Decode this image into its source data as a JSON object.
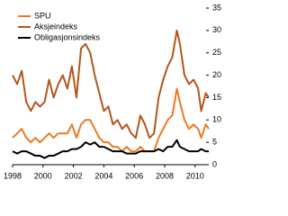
{
  "chart_data": {
    "type": "line",
    "x": [
      1998,
      1998.3,
      1998.6,
      1998.9,
      1999.2,
      1999.5,
      1999.8,
      2000.1,
      2000.4,
      2000.7,
      2001,
      2001.3,
      2001.6,
      2001.9,
      2002.2,
      2002.5,
      2002.8,
      2003.1,
      2003.4,
      2003.7,
      2004,
      2004.3,
      2004.6,
      2004.9,
      2005.2,
      2005.5,
      2005.8,
      2006.1,
      2006.4,
      2006.7,
      2007,
      2007.3,
      2007.6,
      2007.9,
      2008.2,
      2008.5,
      2008.8,
      2009,
      2009.3,
      2009.6,
      2009.9,
      2010.2,
      2010.4,
      2010.7,
      2010.9
    ],
    "series": [
      {
        "name": "SPU",
        "color": "#ec7a23",
        "values": [
          6,
          7,
          8,
          6,
          5,
          6,
          5,
          6,
          7,
          6,
          7,
          7,
          7,
          9,
          6,
          9,
          10,
          10,
          8,
          6,
          5,
          5,
          4,
          4,
          3,
          4,
          3,
          3,
          4,
          3,
          3,
          3,
          6,
          8,
          10,
          11,
          17,
          14,
          10,
          8,
          9,
          8,
          6,
          9,
          8
        ]
      },
      {
        "name": "Aksjeindeks",
        "color": "#b4561d",
        "values": [
          20,
          18,
          21,
          14,
          12,
          14,
          13,
          14,
          19,
          15,
          18,
          20,
          17,
          22,
          15,
          26,
          27,
          25,
          20,
          16,
          12,
          13,
          9,
          10,
          8,
          9,
          7,
          6,
          11,
          9,
          6,
          7,
          15,
          19,
          22,
          24,
          30,
          27,
          20,
          18,
          19,
          17,
          12,
          16,
          15
        ]
      },
      {
        "name": "Obligasjonsindeks",
        "color": "#000000",
        "values": [
          3,
          2.5,
          3,
          3,
          2.5,
          2,
          2,
          1.5,
          2,
          2,
          2.5,
          3,
          3,
          3.5,
          3.5,
          4,
          5,
          4.5,
          5,
          4,
          4,
          3.5,
          3,
          3,
          3,
          2.5,
          2.5,
          2.5,
          3,
          3,
          3,
          3,
          3.5,
          3,
          4,
          4,
          5.5,
          4,
          3.5,
          3,
          3,
          3,
          3.5,
          3,
          3
        ]
      }
    ],
    "xlim": [
      1998,
      2010.9
    ],
    "xticks": [
      1998,
      2000,
      2002,
      2004,
      2006,
      2008,
      2010
    ],
    "ylim": [
      0,
      35
    ],
    "yticks": [
      0,
      5,
      10,
      15,
      20,
      25,
      30,
      35
    ],
    "legend": "top-left"
  }
}
